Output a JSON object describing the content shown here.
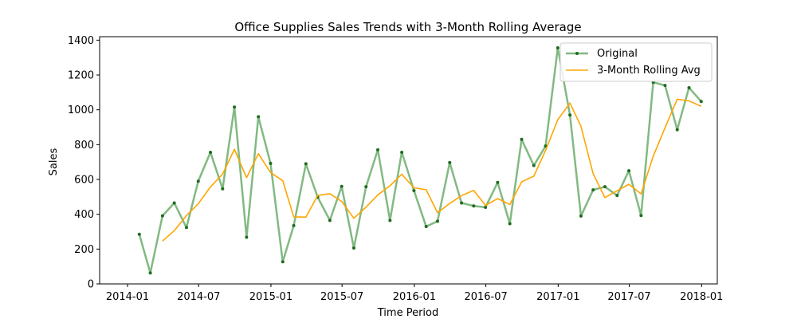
{
  "chart_data": {
    "type": "line",
    "title": "Office Supplies Sales Trends with 3-Month Rolling Average",
    "xlabel": "Time Period",
    "ylabel": "Sales",
    "x_tick_labels": [
      "2014-01",
      "2014-07",
      "2015-01",
      "2015-07",
      "2016-01",
      "2016-07",
      "2017-01",
      "2017-07",
      "2018-01"
    ],
    "x_tick_dates": [
      "2014-01-01",
      "2014-07-01",
      "2015-01-01",
      "2015-07-01",
      "2016-01-01",
      "2016-07-01",
      "2017-01-01",
      "2017-07-01",
      "2018-01-01"
    ],
    "xlim": [
      "2013-10-22",
      "2018-02-10"
    ],
    "ylim": [
      0,
      1420
    ],
    "y_ticks": [
      0,
      200,
      400,
      600,
      800,
      1000,
      1200,
      1400
    ],
    "grid": false,
    "legend_position": "top-right",
    "x": [
      "2014-01-31",
      "2014-02-28",
      "2014-03-31",
      "2014-04-30",
      "2014-05-31",
      "2014-06-30",
      "2014-07-31",
      "2014-08-31",
      "2014-09-30",
      "2014-10-31",
      "2014-11-30",
      "2014-12-31",
      "2015-01-31",
      "2015-02-28",
      "2015-03-31",
      "2015-04-30",
      "2015-05-31",
      "2015-06-30",
      "2015-07-31",
      "2015-08-31",
      "2015-09-30",
      "2015-10-31",
      "2015-11-30",
      "2015-12-31",
      "2016-01-31",
      "2016-02-29",
      "2016-03-31",
      "2016-04-30",
      "2016-05-31",
      "2016-06-30",
      "2016-07-31",
      "2016-08-31",
      "2016-09-30",
      "2016-10-31",
      "2016-11-30",
      "2016-12-31",
      "2017-01-31",
      "2017-02-28",
      "2017-03-31",
      "2017-04-30",
      "2017-05-31",
      "2017-06-30",
      "2017-07-31",
      "2017-08-31",
      "2017-09-30",
      "2017-10-31",
      "2017-11-30",
      "2017-12-31"
    ],
    "series": [
      {
        "name": "Original",
        "color": "#2e8b2e",
        "marker": "dot",
        "values": [
          285,
          63,
          391,
          465,
          324,
          590,
          756,
          546,
          1016,
          268,
          960,
          692,
          127,
          335,
          690,
          498,
          365,
          560,
          206,
          558,
          770,
          365,
          756,
          536,
          330,
          360,
          697,
          465,
          448,
          440,
          583,
          346,
          830,
          680,
          792,
          1356,
          970,
          390,
          540,
          558,
          508,
          650,
          393,
          1158,
          1140,
          886,
          1127,
          1048
        ]
      },
      {
        "name": "3-Month Rolling Avg",
        "color": "#ffa500",
        "marker": "none",
        "values": [
          null,
          null,
          246,
          306,
          393,
          460,
          557,
          631,
          773,
          610,
          748,
          640,
          593,
          385,
          384,
          508,
          518,
          474,
          377,
          441,
          511,
          564,
          630,
          552,
          541,
          409,
          462,
          507,
          537,
          451,
          490,
          456,
          586,
          619,
          767,
          943,
          1039,
          905,
          633,
          496,
          535,
          572,
          517,
          734,
          897,
          1061,
          1051,
          1020
        ]
      }
    ]
  }
}
